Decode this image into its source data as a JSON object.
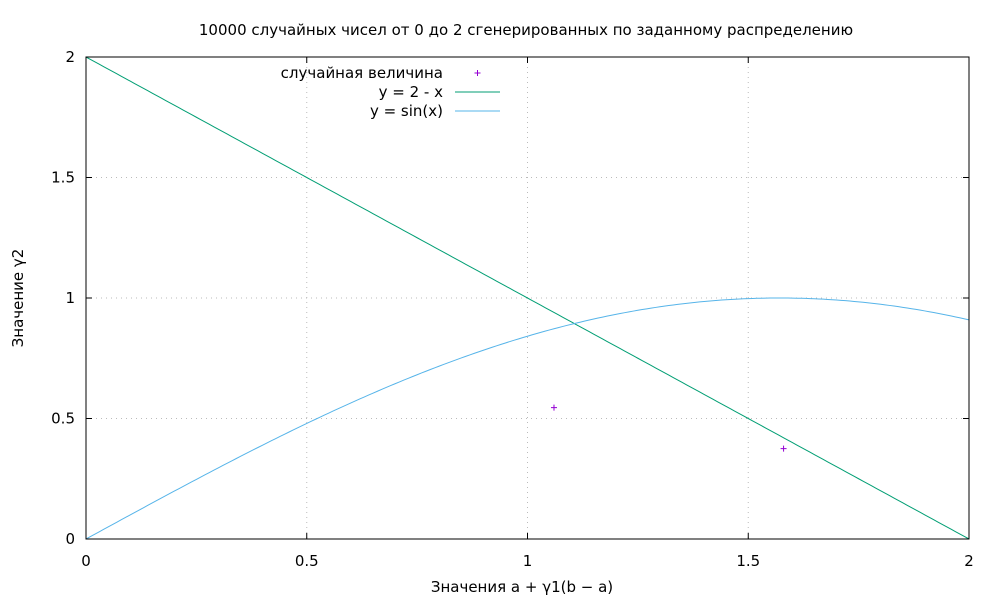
{
  "chart_data": {
    "type": "scatter",
    "title": "10000 случайных чисел от 0 до 2 сгенерированных по заданному распределению",
    "xlabel": "Значения  a + γ1(b − a)",
    "ylabel": "Значение γ2",
    "xlim": [
      0,
      2
    ],
    "ylim": [
      0,
      2
    ],
    "x_ticks": [
      "0",
      "0.5",
      "1",
      "1.5",
      "2"
    ],
    "y_ticks": [
      "0",
      "0.5",
      "1",
      "1.5",
      "2"
    ],
    "grid": true,
    "legend_position": "top-left",
    "series": [
      {
        "name": "случайная величина",
        "kind": "points",
        "marker": "+",
        "color": "#9400d3",
        "points": [
          [
            1.06,
            0.545
          ],
          [
            1.58,
            0.375
          ]
        ]
      },
      {
        "name": "y = 2 - x",
        "kind": "function",
        "color": "#009e73"
      },
      {
        "name": "y = sin(x)",
        "kind": "function",
        "color": "#56b4e9"
      }
    ]
  }
}
